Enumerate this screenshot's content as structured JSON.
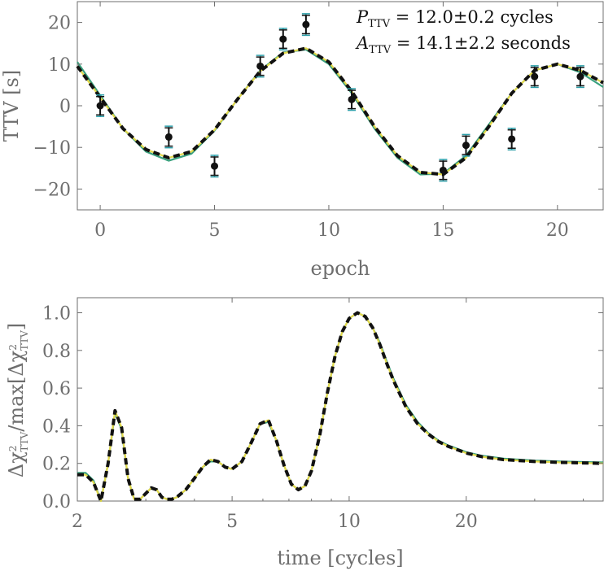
{
  "chart_data": [
    {
      "type": "line",
      "xlabel": "epoch",
      "ylabel": "TTV [s]",
      "xlim": [
        -1,
        22
      ],
      "ylim": [
        -25,
        25
      ],
      "x_ticks": [
        0,
        5,
        10,
        15,
        20
      ],
      "y_ticks": [
        -20,
        -10,
        0,
        10,
        20
      ],
      "grid": false,
      "annotations": [
        {
          "label": "P",
          "subscript": "TTV",
          "text": " = 12.0±0.2 cycles"
        },
        {
          "label": "A",
          "subscript": "TTV",
          "text": " = 14.1±2.2 seconds"
        }
      ],
      "points": [
        {
          "x": 0,
          "y": 0,
          "err": 2.2
        },
        {
          "x": 3,
          "y": -7.5,
          "err": 2.2
        },
        {
          "x": 5,
          "y": -14.5,
          "err": 2.2
        },
        {
          "x": 7,
          "y": 9.5,
          "err": 2.2
        },
        {
          "x": 8,
          "y": 16,
          "err": 2.2
        },
        {
          "x": 9,
          "y": 19.5,
          "err": 2.2
        },
        {
          "x": 11,
          "y": 1.5,
          "err": 2.2
        },
        {
          "x": 15,
          "y": -15.5,
          "err": 2.2
        },
        {
          "x": 16,
          "y": -9.5,
          "err": 2.2
        },
        {
          "x": 18,
          "y": -8,
          "err": 2.2
        },
        {
          "x": 19,
          "y": 7,
          "err": 2.2
        },
        {
          "x": 21,
          "y": 7,
          "err": 2.2
        }
      ],
      "series": [
        {
          "color": "#3aa17e",
          "style": "solid",
          "x": [
            -1,
            0,
            1,
            2,
            3,
            4,
            5,
            6,
            7,
            8,
            9,
            10,
            11,
            12,
            13,
            14,
            15,
            16,
            17,
            18,
            19,
            20,
            21,
            22
          ],
          "y": [
            10.5,
            2.5,
            -5.5,
            -11,
            -13.2,
            -11.5,
            -6,
            1.5,
            8.5,
            12.8,
            13.5,
            10,
            3,
            -5.5,
            -12.5,
            -16.5,
            -16.3,
            -12,
            -4.5,
            3,
            8.5,
            10,
            8,
            4.5
          ]
        },
        {
          "color": "#e3d84a",
          "style": "solid",
          "x": [
            -1,
            0,
            1,
            2,
            3,
            4,
            5,
            6,
            7,
            8,
            9,
            10,
            11,
            12,
            13,
            14,
            15,
            16,
            17,
            18,
            19,
            20,
            21,
            22
          ],
          "y": [
            9.5,
            2,
            -5.5,
            -10.5,
            -12.5,
            -11,
            -5.8,
            1.5,
            8.3,
            12.6,
            13.8,
            10.5,
            3.5,
            -5,
            -12,
            -16,
            -16.5,
            -12.5,
            -5,
            3,
            8.5,
            10,
            8.5,
            5.5
          ]
        },
        {
          "color": "#111111",
          "style": "dashed",
          "x": [
            -1,
            0,
            1,
            2,
            3,
            4,
            5,
            6,
            7,
            8,
            9,
            10,
            11,
            12,
            13,
            14,
            15,
            16,
            17,
            18,
            19,
            20,
            21,
            22
          ],
          "y": [
            9.5,
            2,
            -5.5,
            -10.5,
            -12.5,
            -11,
            -5.8,
            1.5,
            8.3,
            12.6,
            13.8,
            10.5,
            3.5,
            -5,
            -12,
            -16,
            -16.5,
            -12.5,
            -5,
            3,
            8.5,
            10,
            8.5,
            5.5
          ]
        }
      ]
    },
    {
      "type": "line",
      "xlabel": "time [cycles]",
      "ylabel": "Δχ²TTV/max[Δχ²TTV]",
      "ylabel_parts": [
        "Δχ",
        "2",
        "TTV",
        "/max[Δχ",
        "2",
        "TTV",
        "]"
      ],
      "x_scale": "log",
      "xlim": [
        2,
        45
      ],
      "ylim": [
        0,
        1.08
      ],
      "x_ticks": [
        2,
        5,
        10,
        20
      ],
      "y_ticks": [
        0.0,
        0.2,
        0.4,
        0.6,
        0.8,
        1.0
      ],
      "y_tick_labels": [
        "0.0",
        "0.2",
        "0.4",
        "0.6",
        "0.8",
        "1.0"
      ],
      "grid": false,
      "series": [
        {
          "color": "#3aa17e",
          "style": "solid",
          "x": [
            2,
            2.1,
            2.2,
            2.3,
            2.4,
            2.5,
            2.6,
            2.7,
            2.8,
            2.9,
            3.0,
            3.1,
            3.2,
            3.3,
            3.4,
            3.5,
            3.6,
            3.8,
            4.0,
            4.2,
            4.4,
            4.6,
            4.8,
            5.0,
            5.3,
            5.6,
            5.9,
            6.2,
            6.5,
            6.8,
            7.1,
            7.4,
            7.7,
            8.0,
            8.4,
            8.8,
            9.2,
            9.6,
            10,
            10.5,
            11,
            11.5,
            12.0,
            12.5,
            13,
            14,
            15,
            16,
            17,
            18,
            20,
            22,
            25,
            30,
            35,
            45
          ],
          "y": [
            0.15,
            0.15,
            0.11,
            0.0,
            0.2,
            0.47,
            0.38,
            0.12,
            0.01,
            0.01,
            0.04,
            0.07,
            0.06,
            0.02,
            0.01,
            0.01,
            0.02,
            0.06,
            0.12,
            0.18,
            0.21,
            0.21,
            0.18,
            0.17,
            0.21,
            0.31,
            0.41,
            0.42,
            0.32,
            0.19,
            0.09,
            0.06,
            0.08,
            0.16,
            0.35,
            0.58,
            0.77,
            0.9,
            0.97,
            1.0,
            0.98,
            0.92,
            0.84,
            0.74,
            0.65,
            0.51,
            0.42,
            0.36,
            0.32,
            0.295,
            0.26,
            0.24,
            0.225,
            0.215,
            0.21,
            0.205
          ]
        },
        {
          "color": "#e3d84a",
          "style": "solid",
          "x": [
            2,
            2.1,
            2.2,
            2.3,
            2.4,
            2.5,
            2.6,
            2.7,
            2.8,
            2.9,
            3.0,
            3.1,
            3.2,
            3.3,
            3.4,
            3.5,
            3.6,
            3.8,
            4.0,
            4.2,
            4.4,
            4.6,
            4.8,
            5.0,
            5.3,
            5.6,
            5.9,
            6.2,
            6.5,
            6.8,
            7.1,
            7.4,
            7.7,
            8.0,
            8.4,
            8.8,
            9.2,
            9.6,
            10,
            10.5,
            11,
            11.5,
            12.0,
            12.5,
            13,
            14,
            15,
            16,
            17,
            18,
            20,
            22,
            25,
            30,
            35,
            45
          ],
          "y": [
            0.14,
            0.14,
            0.1,
            0.0,
            0.2,
            0.48,
            0.39,
            0.12,
            0.01,
            0.01,
            0.04,
            0.07,
            0.06,
            0.02,
            0.01,
            0.01,
            0.02,
            0.06,
            0.12,
            0.18,
            0.22,
            0.21,
            0.18,
            0.17,
            0.21,
            0.31,
            0.41,
            0.43,
            0.32,
            0.19,
            0.09,
            0.06,
            0.08,
            0.16,
            0.35,
            0.58,
            0.77,
            0.9,
            0.97,
            1.0,
            0.98,
            0.92,
            0.83,
            0.73,
            0.64,
            0.5,
            0.41,
            0.355,
            0.315,
            0.29,
            0.255,
            0.235,
            0.22,
            0.21,
            0.205,
            0.2
          ]
        },
        {
          "color": "#111111",
          "style": "dashed",
          "x": [
            2,
            2.1,
            2.2,
            2.3,
            2.4,
            2.5,
            2.6,
            2.7,
            2.8,
            2.9,
            3.0,
            3.1,
            3.2,
            3.3,
            3.4,
            3.5,
            3.6,
            3.8,
            4.0,
            4.2,
            4.4,
            4.6,
            4.8,
            5.0,
            5.3,
            5.6,
            5.9,
            6.2,
            6.5,
            6.8,
            7.1,
            7.4,
            7.7,
            8.0,
            8.4,
            8.8,
            9.2,
            9.6,
            10,
            10.5,
            11,
            11.5,
            12.0,
            12.5,
            13,
            14,
            15,
            16,
            17,
            18,
            20,
            22,
            25,
            30,
            35,
            45
          ],
          "y": [
            0.14,
            0.14,
            0.1,
            0.0,
            0.2,
            0.48,
            0.39,
            0.12,
            0.01,
            0.01,
            0.04,
            0.07,
            0.06,
            0.02,
            0.01,
            0.01,
            0.02,
            0.06,
            0.12,
            0.18,
            0.22,
            0.21,
            0.18,
            0.17,
            0.21,
            0.31,
            0.41,
            0.43,
            0.32,
            0.19,
            0.09,
            0.06,
            0.08,
            0.16,
            0.35,
            0.58,
            0.77,
            0.9,
            0.97,
            1.0,
            0.98,
            0.92,
            0.83,
            0.73,
            0.64,
            0.5,
            0.41,
            0.355,
            0.315,
            0.29,
            0.255,
            0.235,
            0.22,
            0.21,
            0.205,
            0.2
          ]
        }
      ]
    }
  ]
}
